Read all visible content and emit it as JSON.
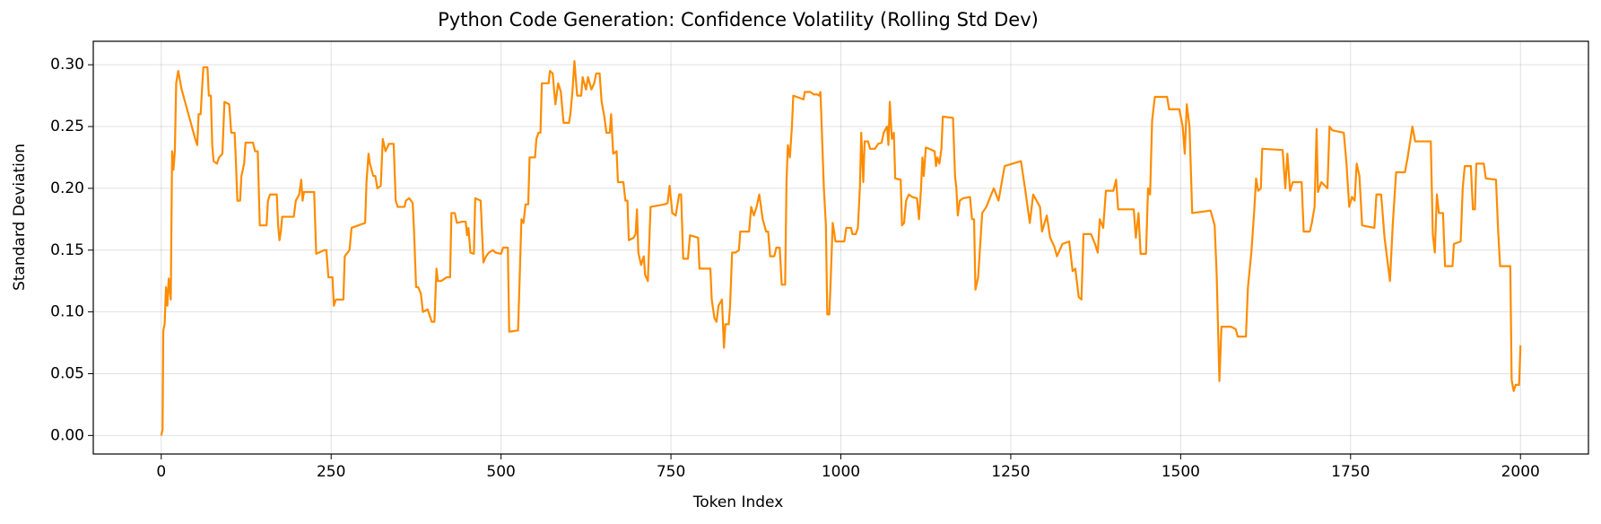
{
  "chart_data": {
    "type": "line",
    "title": "Python Code Generation: Confidence Volatility (Rolling Std Dev)",
    "x_label": "Token Index",
    "y_label": "Standard Deviation",
    "color": "#ff8c00",
    "grid": true,
    "xlim": [
      -100,
      2100
    ],
    "ylim": [
      -0.015,
      0.319
    ],
    "xticks": [
      0,
      250,
      500,
      750,
      1000,
      1250,
      1500,
      1750,
      2000
    ],
    "yticks": [
      {
        "value": 0,
        "label": "0.00"
      },
      {
        "value": 0.05,
        "label": "0.05"
      },
      {
        "value": 0.1,
        "label": "0.10"
      },
      {
        "value": 0.15,
        "label": "0.15"
      },
      {
        "value": 0.2,
        "label": "0.20"
      },
      {
        "value": 0.25,
        "label": "0.25"
      },
      {
        "value": 0.3,
        "label": "0.30"
      }
    ],
    "x": [
      0,
      2,
      3,
      5,
      7,
      9,
      11,
      14,
      16,
      18,
      20,
      22,
      25,
      30,
      40,
      50,
      53,
      55,
      58,
      60,
      62,
      68,
      70,
      73,
      75,
      77,
      82,
      85,
      90,
      93,
      100,
      103,
      108,
      110,
      112,
      116,
      118,
      122,
      124,
      135,
      138,
      142,
      145,
      155,
      157,
      160,
      170,
      172,
      174,
      176,
      178,
      195,
      198,
      203,
      206,
      208,
      210,
      225,
      228,
      240,
      243,
      246,
      252,
      254,
      257,
      268,
      270,
      277,
      280,
      290,
      300,
      302,
      305,
      307,
      312,
      315,
      318,
      323,
      326,
      330,
      335,
      342,
      345,
      348,
      358,
      360,
      365,
      370,
      372,
      375,
      378,
      382,
      385,
      392,
      395,
      398,
      402,
      405,
      407,
      412,
      420,
      425,
      427,
      432,
      435,
      443,
      448,
      450,
      452,
      455,
      460,
      462,
      470,
      474,
      478,
      482,
      488,
      492,
      500,
      503,
      510,
      512,
      525,
      527,
      530,
      533,
      536,
      540,
      542,
      550,
      552,
      555,
      558,
      560,
      570,
      572,
      576,
      578,
      580,
      584,
      588,
      592,
      600,
      602,
      605,
      608,
      612,
      618,
      620,
      625,
      628,
      633,
      637,
      640,
      645,
      648,
      652,
      655,
      660,
      662,
      665,
      670,
      672,
      680,
      683,
      686,
      688,
      695,
      698,
      700,
      702,
      706,
      710,
      712,
      716,
      720,
      740,
      745,
      748,
      752,
      757,
      762,
      765,
      768,
      775,
      778,
      790,
      792,
      808,
      810,
      814,
      817,
      820,
      825,
      828,
      830,
      835,
      837,
      840,
      845,
      850,
      852,
      865,
      868,
      872,
      876,
      880,
      885,
      890,
      893,
      896,
      902,
      905,
      910,
      913,
      918,
      920,
      922,
      925,
      928,
      930,
      940,
      945,
      947,
      955,
      960,
      965,
      968,
      970,
      975,
      978,
      980,
      983,
      985,
      988,
      990,
      992,
      1005,
      1008,
      1015,
      1017,
      1022,
      1025,
      1028,
      1030,
      1033,
      1035,
      1040,
      1043,
      1050,
      1055,
      1060,
      1063,
      1068,
      1070,
      1072,
      1075,
      1078,
      1080,
      1088,
      1090,
      1093,
      1096,
      1100,
      1105,
      1112,
      1115,
      1118,
      1120,
      1122,
      1125,
      1130,
      1138,
      1140,
      1142,
      1145,
      1148,
      1150,
      1165,
      1168,
      1170,
      1172,
      1175,
      1180,
      1190,
      1193,
      1196,
      1198,
      1202,
      1208,
      1214,
      1225,
      1232,
      1241,
      1253,
      1265,
      1271,
      1278,
      1283,
      1293,
      1296,
      1303,
      1308,
      1314,
      1318,
      1326,
      1336,
      1341,
      1345,
      1350,
      1354,
      1357,
      1368,
      1374,
      1378,
      1381,
      1386,
      1390,
      1401,
      1405,
      1408,
      1431,
      1434,
      1438,
      1441,
      1449,
      1452,
      1455,
      1458,
      1462,
      1480,
      1483,
      1498,
      1503,
      1506,
      1509,
      1513,
      1517,
      1544,
      1550,
      1553,
      1557,
      1560,
      1574,
      1581,
      1584,
      1596,
      1599,
      1604,
      1608,
      1611,
      1614,
      1618,
      1620,
      1650,
      1654,
      1657,
      1661,
      1665,
      1678,
      1681,
      1690,
      1693,
      1697,
      1700,
      1702,
      1707,
      1716,
      1719,
      1723,
      1740,
      1744,
      1748,
      1752,
      1756,
      1759,
      1763,
      1767,
      1785,
      1788,
      1795,
      1800,
      1808,
      1812,
      1817,
      1830,
      1834,
      1841,
      1845,
      1868,
      1871,
      1874,
      1877,
      1880,
      1886,
      1889,
      1900,
      1902,
      1912,
      1915,
      1918,
      1927,
      1930,
      1933,
      1935,
      1946,
      1949,
      1964,
      1967,
      1970,
      1985,
      1987,
      1990,
      1993,
      1998,
      2000
    ],
    "values": [
      0,
      0.005,
      0.085,
      0.09,
      0.12,
      0.105,
      0.127,
      0.11,
      0.23,
      0.215,
      0.23,
      0.285,
      0.295,
      0.28,
      0.26,
      0.24,
      0.235,
      0.26,
      0.26,
      0.28,
      0.298,
      0.298,
      0.275,
      0.275,
      0.235,
      0.222,
      0.22,
      0.225,
      0.228,
      0.27,
      0.268,
      0.245,
      0.245,
      0.22,
      0.19,
      0.19,
      0.21,
      0.22,
      0.237,
      0.237,
      0.23,
      0.23,
      0.17,
      0.17,
      0.19,
      0.195,
      0.195,
      0.17,
      0.158,
      0.165,
      0.177,
      0.177,
      0.19,
      0.195,
      0.207,
      0.19,
      0.197,
      0.197,
      0.147,
      0.15,
      0.15,
      0.128,
      0.128,
      0.105,
      0.11,
      0.11,
      0.145,
      0.15,
      0.168,
      0.17,
      0.172,
      0.205,
      0.228,
      0.22,
      0.21,
      0.21,
      0.2,
      0.202,
      0.24,
      0.23,
      0.236,
      0.236,
      0.19,
      0.185,
      0.185,
      0.19,
      0.192,
      0.188,
      0.165,
      0.12,
      0.12,
      0.115,
      0.1,
      0.102,
      0.097,
      0.092,
      0.092,
      0.135,
      0.125,
      0.125,
      0.128,
      0.128,
      0.18,
      0.18,
      0.172,
      0.173,
      0.173,
      0.162,
      0.168,
      0.148,
      0.147,
      0.192,
      0.19,
      0.14,
      0.145,
      0.148,
      0.15,
      0.148,
      0.147,
      0.152,
      0.152,
      0.084,
      0.085,
      0.12,
      0.175,
      0.172,
      0.187,
      0.187,
      0.225,
      0.225,
      0.24,
      0.245,
      0.245,
      0.285,
      0.285,
      0.295,
      0.293,
      0.28,
      0.268,
      0.285,
      0.278,
      0.253,
      0.253,
      0.26,
      0.278,
      0.303,
      0.275,
      0.275,
      0.29,
      0.28,
      0.29,
      0.28,
      0.285,
      0.293,
      0.293,
      0.27,
      0.258,
      0.245,
      0.245,
      0.26,
      0.228,
      0.23,
      0.205,
      0.205,
      0.19,
      0.19,
      0.158,
      0.16,
      0.163,
      0.183,
      0.148,
      0.138,
      0.145,
      0.13,
      0.125,
      0.185,
      0.187,
      0.188,
      0.202,
      0.18,
      0.178,
      0.195,
      0.195,
      0.143,
      0.143,
      0.162,
      0.16,
      0.135,
      0.135,
      0.11,
      0.095,
      0.092,
      0.105,
      0.11,
      0.071,
      0.09,
      0.09,
      0.105,
      0.148,
      0.148,
      0.15,
      0.165,
      0.165,
      0.185,
      0.178,
      0.185,
      0.195,
      0.175,
      0.165,
      0.165,
      0.145,
      0.145,
      0.152,
      0.152,
      0.122,
      0.122,
      0.205,
      0.235,
      0.225,
      0.25,
      0.275,
      0.273,
      0.272,
      0.278,
      0.278,
      0.276,
      0.276,
      0.275,
      0.278,
      0.2,
      0.17,
      0.098,
      0.098,
      0.125,
      0.172,
      0.165,
      0.157,
      0.157,
      0.168,
      0.168,
      0.163,
      0.163,
      0.168,
      0.2,
      0.245,
      0.205,
      0.238,
      0.238,
      0.232,
      0.232,
      0.236,
      0.237,
      0.245,
      0.25,
      0.235,
      0.27,
      0.24,
      0.245,
      0.208,
      0.207,
      0.17,
      0.172,
      0.19,
      0.195,
      0.193,
      0.192,
      0.175,
      0.2,
      0.225,
      0.21,
      0.233,
      0.232,
      0.23,
      0.218,
      0.225,
      0.22,
      0.232,
      0.258,
      0.257,
      0.21,
      0.2,
      0.178,
      0.19,
      0.192,
      0.193,
      0.175,
      0.175,
      0.118,
      0.128,
      0.18,
      0.185,
      0.2,
      0.19,
      0.218,
      0.22,
      0.222,
      0.2,
      0.172,
      0.195,
      0.185,
      0.165,
      0.178,
      0.16,
      0.153,
      0.145,
      0.155,
      0.157,
      0.133,
      0.135,
      0.112,
      0.11,
      0.163,
      0.163,
      0.155,
      0.148,
      0.175,
      0.168,
      0.198,
      0.198,
      0.207,
      0.183,
      0.183,
      0.16,
      0.18,
      0.147,
      0.147,
      0.2,
      0.195,
      0.255,
      0.274,
      0.274,
      0.264,
      0.264,
      0.25,
      0.228,
      0.268,
      0.25,
      0.18,
      0.182,
      0.17,
      0.13,
      0.044,
      0.088,
      0.088,
      0.086,
      0.08,
      0.08,
      0.12,
      0.148,
      0.18,
      0.208,
      0.198,
      0.2,
      0.232,
      0.231,
      0.2,
      0.228,
      0.198,
      0.205,
      0.205,
      0.165,
      0.165,
      0.172,
      0.185,
      0.248,
      0.197,
      0.205,
      0.2,
      0.25,
      0.247,
      0.245,
      0.22,
      0.185,
      0.193,
      0.19,
      0.22,
      0.21,
      0.17,
      0.168,
      0.195,
      0.195,
      0.16,
      0.125,
      0.17,
      0.213,
      0.213,
      0.225,
      0.25,
      0.238,
      0.238,
      0.163,
      0.148,
      0.195,
      0.18,
      0.18,
      0.137,
      0.137,
      0.155,
      0.157,
      0.2,
      0.218,
      0.218,
      0.183,
      0.183,
      0.22,
      0.22,
      0.208,
      0.207,
      0.167,
      0.137,
      0.137,
      0.045,
      0.036,
      0.041,
      0.041,
      0.073
    ]
  }
}
